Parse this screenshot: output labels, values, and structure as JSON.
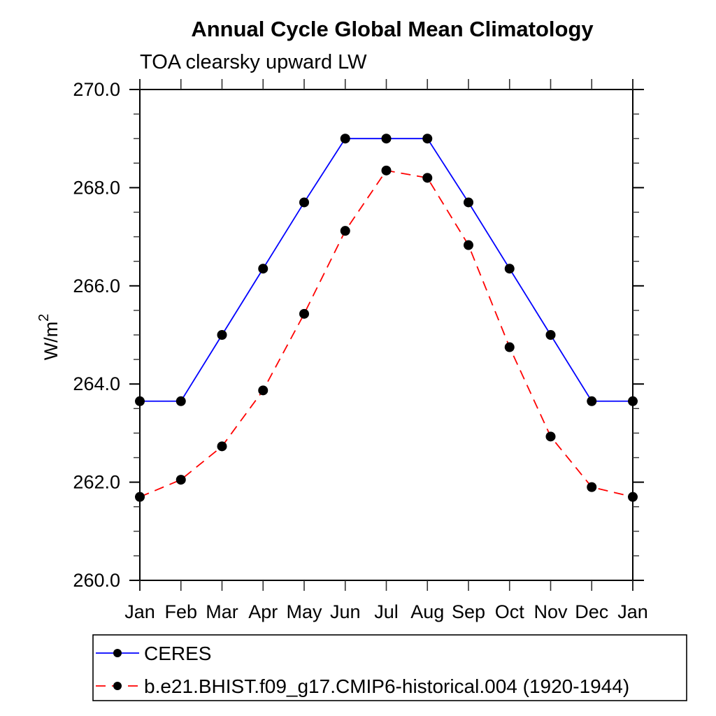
{
  "chart_data": {
    "type": "line",
    "title": "Annual Cycle Global Mean Climatology",
    "subtitle": "TOA clearsky upward LW",
    "ylabel_base": "W/m",
    "ylabel_exponent": "2",
    "categories": [
      "Jan",
      "Feb",
      "Mar",
      "Apr",
      "May",
      "Jun",
      "Jul",
      "Aug",
      "Sep",
      "Oct",
      "Nov",
      "Dec",
      "Jan"
    ],
    "ylim": [
      260.0,
      270.0
    ],
    "ytick_interval": 2.0,
    "yminor_interval": 0.5,
    "ytick_labels": [
      "260.0",
      "262.0",
      "264.0",
      "266.0",
      "268.0",
      "270.0"
    ],
    "grid": false,
    "legend_position": "bottom",
    "axis_color": "#000000",
    "marker_shape": "filled-circle",
    "series": [
      {
        "name": "CERES",
        "line_color": "#0000ff",
        "line_style": "solid",
        "marker_color": "#000000",
        "values": [
          263.65,
          263.65,
          265.0,
          266.35,
          267.7,
          269.0,
          269.0,
          269.0,
          267.7,
          266.35,
          265.0,
          263.65,
          263.65
        ]
      },
      {
        "name": "b.e21.BHIST.f09_g17.CMIP6-historical.004 (1920-1944)",
        "line_color": "#ff0000",
        "line_style": "dashed",
        "marker_color": "#000000",
        "values": [
          261.7,
          262.05,
          262.73,
          263.87,
          265.43,
          267.12,
          268.35,
          268.2,
          266.83,
          264.75,
          262.93,
          261.9,
          261.7
        ]
      }
    ]
  }
}
